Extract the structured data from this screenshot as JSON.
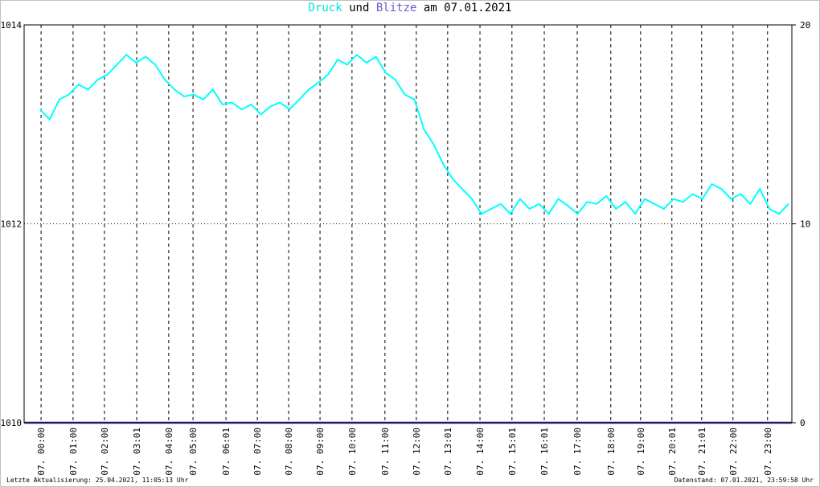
{
  "chart_data": {
    "type": "line",
    "title": {
      "connector": "und",
      "date_text": "am 07.01.2021"
    },
    "footer_left": "Letzte Aktualisierung: 25.04.2021, 11:05:13 Uhr",
    "footer_right": "Datenstand: 07.01.2021, 23:59:58 Uhr",
    "xlim": [
      0,
      240
    ],
    "xticks": [
      {
        "value": 5.3,
        "label": "07. 00:00"
      },
      {
        "value": 15.3,
        "label": "07. 01:00"
      },
      {
        "value": 25.1,
        "label": "07. 02:00"
      },
      {
        "value": 35.2,
        "label": "07. 03:01"
      },
      {
        "value": 45.2,
        "label": "07. 04:00"
      },
      {
        "value": 52.8,
        "label": "07. 05:00"
      },
      {
        "value": 63.1,
        "label": "07. 06:01"
      },
      {
        "value": 72.9,
        "label": "07. 07:00"
      },
      {
        "value": 82.7,
        "label": "07. 08:00"
      },
      {
        "value": 92.5,
        "label": "07. 09:00"
      },
      {
        "value": 102.5,
        "label": "07. 10:00"
      },
      {
        "value": 112.8,
        "label": "07. 11:00"
      },
      {
        "value": 122.6,
        "label": "07. 12:00"
      },
      {
        "value": 132.4,
        "label": "07. 13:01"
      },
      {
        "value": 142.5,
        "label": "07. 14:00"
      },
      {
        "value": 152.5,
        "label": "07. 15:01"
      },
      {
        "value": 162.6,
        "label": "07. 16:01"
      },
      {
        "value": 172.9,
        "label": "07. 17:00"
      },
      {
        "value": 183.4,
        "label": "07. 18:00"
      },
      {
        "value": 192.7,
        "label": "07. 19:00"
      },
      {
        "value": 202.5,
        "label": "07. 20:01"
      },
      {
        "value": 211.8,
        "label": "07. 21:01"
      },
      {
        "value": 221.6,
        "label": "07. 22:00"
      },
      {
        "value": 232.4,
        "label": "07. 23:00"
      }
    ],
    "ylim": [
      1010,
      1014
    ],
    "yticks": [
      1010,
      1012,
      1014
    ],
    "y2lim": [
      0,
      20
    ],
    "y2ticks": [
      0,
      10,
      20
    ],
    "grid": true,
    "series": [
      {
        "name": "Druck",
        "color": "#00ffff",
        "x": [
          5,
          8,
          11,
          14,
          17,
          20,
          23,
          26,
          29,
          32,
          35,
          38,
          41,
          44,
          47,
          50,
          53,
          56,
          59,
          62,
          65,
          68,
          71,
          74,
          77,
          80,
          83,
          86,
          89,
          92,
          95,
          98,
          101,
          104,
          107,
          110,
          113,
          116,
          119,
          122,
          125,
          128,
          131,
          134,
          137,
          140,
          143,
          146,
          149,
          152,
          155,
          158,
          161,
          164,
          167,
          170,
          173,
          176,
          179,
          182,
          185,
          188,
          191,
          194,
          197,
          200,
          203,
          206,
          209,
          212,
          215,
          218,
          221,
          224,
          227,
          230,
          233,
          236,
          239
        ],
        "values": [
          1013.15,
          1013.05,
          1013.25,
          1013.3,
          1013.4,
          1013.35,
          1013.45,
          1013.5,
          1013.6,
          1013.7,
          1013.62,
          1013.68,
          1013.6,
          1013.45,
          1013.35,
          1013.28,
          1013.3,
          1013.25,
          1013.35,
          1013.2,
          1013.22,
          1013.15,
          1013.2,
          1013.1,
          1013.18,
          1013.22,
          1013.15,
          1013.25,
          1013.35,
          1013.42,
          1013.5,
          1013.65,
          1013.6,
          1013.7,
          1013.62,
          1013.68,
          1013.52,
          1013.45,
          1013.3,
          1013.25,
          1012.95,
          1012.8,
          1012.6,
          1012.45,
          1012.35,
          1012.25,
          1012.1,
          1012.15,
          1012.2,
          1012.1,
          1012.25,
          1012.15,
          1012.2,
          1012.1,
          1012.25,
          1012.18,
          1012.1,
          1012.22,
          1012.2,
          1012.28,
          1012.15,
          1012.22,
          1012.1,
          1012.25,
          1012.2,
          1012.15,
          1012.25,
          1012.22,
          1012.3,
          1012.25,
          1012.4,
          1012.35,
          1012.25,
          1012.3,
          1012.2,
          1012.35,
          1012.15,
          1012.1,
          1012.2
        ]
      },
      {
        "name": "Blitze",
        "color": "#191970",
        "axis": "y2",
        "x": [
          0,
          240
        ],
        "values": [
          0,
          0
        ]
      }
    ]
  }
}
